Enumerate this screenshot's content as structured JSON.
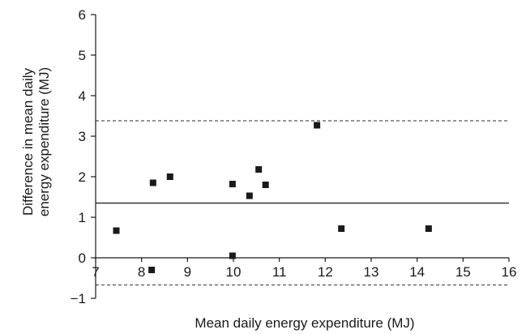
{
  "chart_data": {
    "type": "scatter",
    "title": "",
    "xlabel": "Mean daily energy expenditure (MJ)",
    "ylabel_lines": [
      "Difference in mean daily",
      "energy expenditure (MJ)"
    ],
    "xlim": [
      7,
      16
    ],
    "ylim": [
      -1,
      6
    ],
    "xticks": [
      "7",
      "8",
      "9",
      "10",
      "11",
      "12",
      "13",
      "14",
      "15",
      "16"
    ],
    "yticks": [
      "−1",
      "0",
      "1",
      "2",
      "3",
      "4",
      "5",
      "6"
    ],
    "grid": false,
    "series": [
      {
        "points": [
          {
            "x": 7.45,
            "y": 0.67
          },
          {
            "x": 8.22,
            "y": -0.3
          },
          {
            "x": 8.25,
            "y": 1.85
          },
          {
            "x": 8.62,
            "y": 2.0
          },
          {
            "x": 9.98,
            "y": 1.82
          },
          {
            "x": 9.98,
            "y": 0.05
          },
          {
            "x": 10.35,
            "y": 1.53
          },
          {
            "x": 10.55,
            "y": 2.18
          },
          {
            "x": 10.7,
            "y": 1.8
          },
          {
            "x": 11.82,
            "y": 3.27
          },
          {
            "x": 12.35,
            "y": 0.72
          },
          {
            "x": 14.25,
            "y": 0.72
          }
        ]
      }
    ],
    "reference_lines": [
      {
        "y": 1.35,
        "style": "solid"
      },
      {
        "y": 3.38,
        "style": "dashed"
      },
      {
        "y": -0.67,
        "style": "dashed"
      }
    ],
    "colors": {
      "markers": "#1a1a1a",
      "axes": "#1a1a1a",
      "mean_line": "#333333",
      "limit_lines": "#555555"
    }
  }
}
